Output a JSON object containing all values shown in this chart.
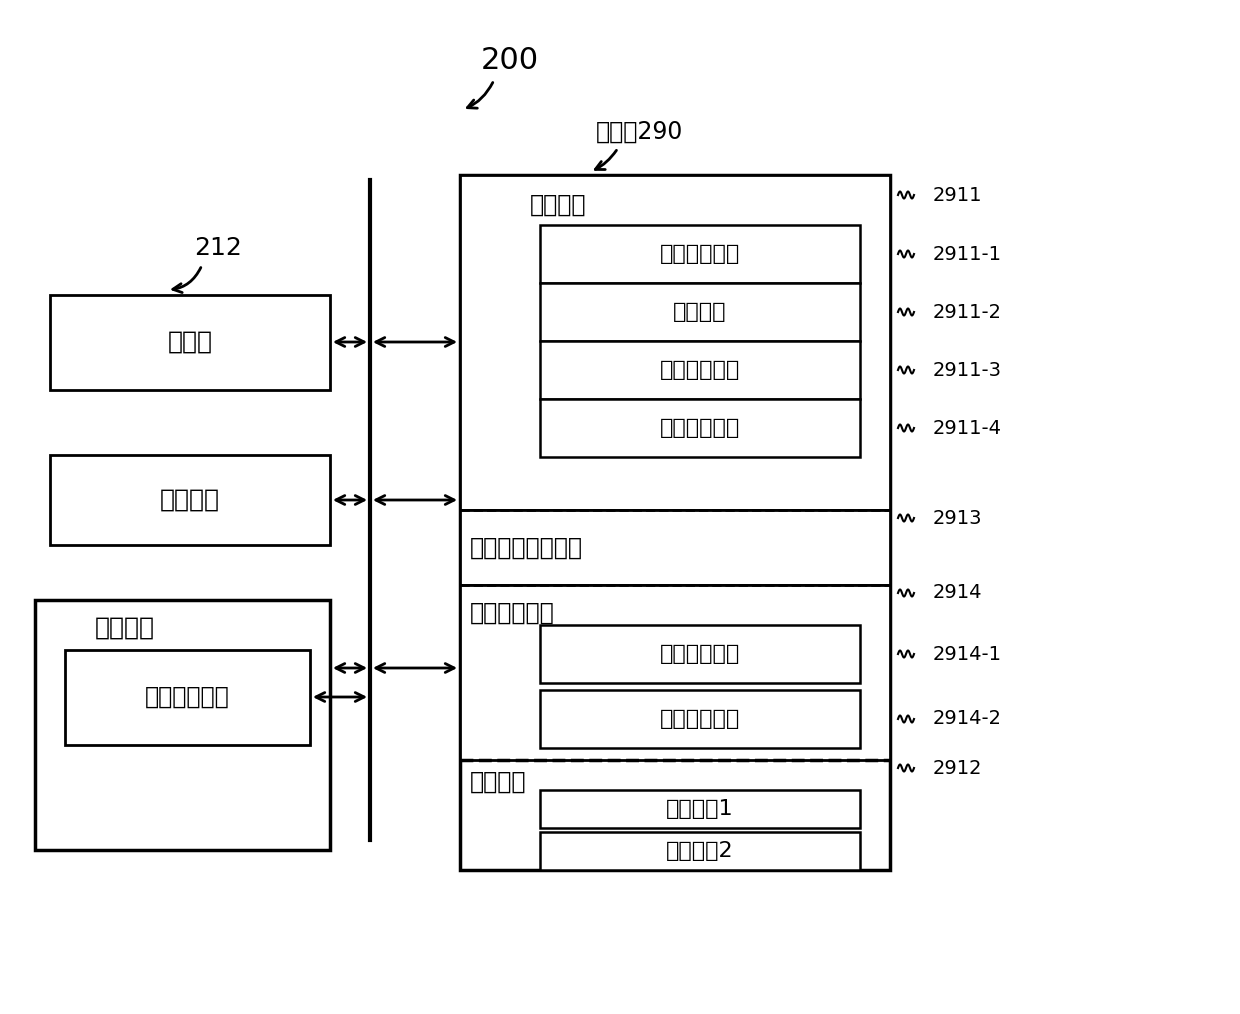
{
  "bg_color": "#ffffff",
  "title": "200",
  "ref_212": "212",
  "storage_label": "存储器290",
  "os_label": "操作系统",
  "os_ref": "2911",
  "os_sub": [
    [
      "可访问性模块",
      "2911-1"
    ],
    [
      "通信模块",
      "2911-2"
    ],
    [
      "用户界面模块",
      "2911-3"
    ],
    [
      "控制应用程序",
      "2911-4"
    ]
  ],
  "layout_label": "界面布局管理模块",
  "layout_ref": "2913",
  "event_label": "事件传输系统",
  "event_ref": "2914",
  "event_sub": [
    [
      "事件监听模块",
      "2914-1"
    ],
    [
      "事件识别模块",
      "2914-2"
    ]
  ],
  "app_label": "应用程序",
  "app_ref": "2912",
  "app_sub": [
    "应用程序1",
    "应用程序2"
  ],
  "proc_label": "处理器",
  "comm_label": "通信接口",
  "ui_label": "用户界面",
  "ui_input_label": "用户输入接口"
}
